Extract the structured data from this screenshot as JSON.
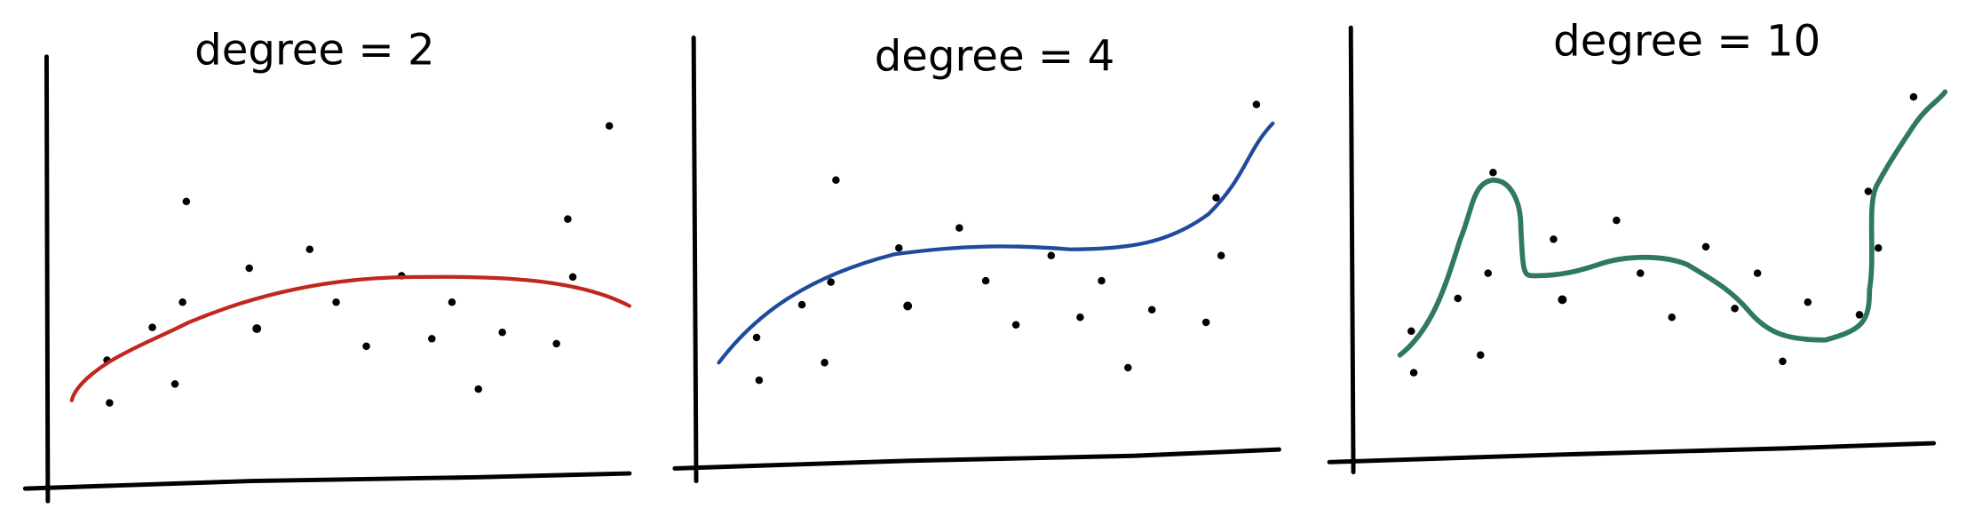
{
  "panels": [
    {
      "title": "degree = 2"
    },
    {
      "title": "degree = 4"
    },
    {
      "title": "degree = 10"
    }
  ]
}
